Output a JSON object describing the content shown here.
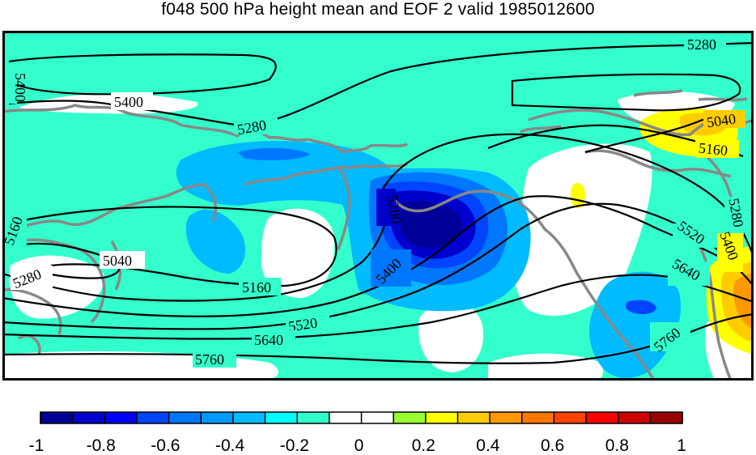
{
  "title": "f048 500 hPa height mean and EOF 2 valid 1985012600",
  "colors": {
    "background_field": "#33ffcc",
    "land_outline": "#888888",
    "contour": "#000000",
    "frame": "#000000"
  },
  "colorbar": {
    "colors": [
      "#000099",
      "#0000cc",
      "#0000ff",
      "#0044ff",
      "#0077ff",
      "#0099ff",
      "#00bbff",
      "#00ffff",
      "#33ffcc",
      "#ffffff",
      "#ffffff",
      "#99ff33",
      "#ffff00",
      "#ffcc00",
      "#ff9900",
      "#ff7700",
      "#ff4400",
      "#ff0000",
      "#cc0000",
      "#990000"
    ],
    "tick_labels": [
      "-1",
      "-0.8",
      "-0.6",
      "-0.4",
      "-0.2",
      "0",
      "0.2",
      "0.4",
      "0.6",
      "0.8",
      "1"
    ]
  },
  "contour_labels": [
    {
      "text": "5280",
      "id": "c5280-ne"
    },
    {
      "text": "5400",
      "id": "c5400-nw-edge"
    },
    {
      "text": "5400",
      "id": "c5400-n"
    },
    {
      "text": "5280",
      "id": "c5280-n"
    },
    {
      "text": "5040",
      "id": "c5040-ne"
    },
    {
      "text": "5160",
      "id": "c5160-ne"
    },
    {
      "text": "5280",
      "id": "c5280-center"
    },
    {
      "text": "5280",
      "id": "c5280-e"
    },
    {
      "text": "5520",
      "id": "c5520-e"
    },
    {
      "text": "5400",
      "id": "c5400-e"
    },
    {
      "text": "5160",
      "id": "c5160-w"
    },
    {
      "text": "5040",
      "id": "c5040-w"
    },
    {
      "text": "5280",
      "id": "c5280-w"
    },
    {
      "text": "5160",
      "id": "c5160-s"
    },
    {
      "text": "5400",
      "id": "c5400-center"
    },
    {
      "text": "5640",
      "id": "c5640-e"
    },
    {
      "text": "5520",
      "id": "c5520-s"
    },
    {
      "text": "5640",
      "id": "c5640-s"
    },
    {
      "text": "5760",
      "id": "c5760-se"
    },
    {
      "text": "5760",
      "id": "c5760-s"
    }
  ]
}
